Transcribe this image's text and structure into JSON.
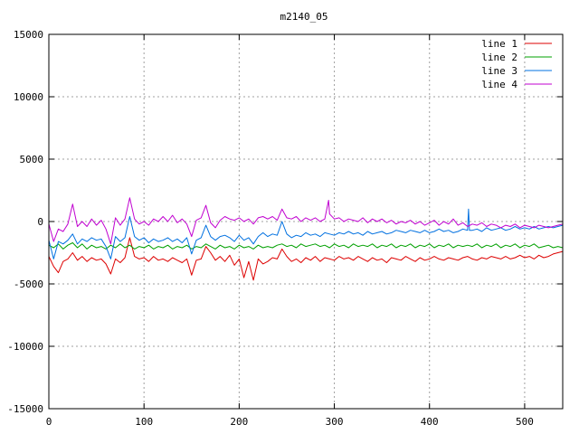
{
  "chart_data": {
    "type": "line",
    "title": "m2140_05",
    "xlabel": "",
    "ylabel": "",
    "xlim": [
      0,
      540
    ],
    "ylim": [
      -15000,
      15000
    ],
    "xticks": [
      0,
      100,
      200,
      300,
      400,
      500
    ],
    "yticks": [
      -15000,
      -10000,
      -5000,
      0,
      5000,
      10000,
      15000
    ],
    "grid": true,
    "legend_position": "top-right",
    "series": [
      {
        "name": "line 1",
        "color": "#dd0000",
        "x": [
          0,
          5,
          10,
          15,
          20,
          25,
          30,
          35,
          40,
          45,
          50,
          55,
          60,
          65,
          70,
          75,
          80,
          85,
          90,
          95,
          100,
          105,
          110,
          115,
          120,
          125,
          130,
          135,
          140,
          145,
          150,
          155,
          160,
          165,
          170,
          175,
          180,
          185,
          190,
          195,
          200,
          205,
          210,
          215,
          220,
          225,
          230,
          235,
          240,
          245,
          250,
          255,
          260,
          265,
          270,
          275,
          280,
          285,
          290,
          295,
          300,
          305,
          310,
          315,
          320,
          325,
          330,
          335,
          340,
          345,
          350,
          355,
          360,
          365,
          370,
          375,
          380,
          385,
          390,
          395,
          400,
          405,
          410,
          415,
          420,
          425,
          430,
          435,
          440,
          445,
          450,
          455,
          460,
          465,
          470,
          475,
          480,
          485,
          490,
          495,
          500,
          505,
          510,
          515,
          520,
          525,
          530,
          535,
          540
        ],
        "y": [
          -2800,
          -3600,
          -4100,
          -3200,
          -3000,
          -2500,
          -3100,
          -2800,
          -3200,
          -2900,
          -3100,
          -3000,
          -3400,
          -4200,
          -3000,
          -3300,
          -2900,
          -1300,
          -2800,
          -3000,
          -2900,
          -3200,
          -2800,
          -3100,
          -3000,
          -3200,
          -2900,
          -3100,
          -3300,
          -3000,
          -4300,
          -3100,
          -3000,
          -2000,
          -2500,
          -3100,
          -2800,
          -3200,
          -2700,
          -3500,
          -3000,
          -4500,
          -3200,
          -4700,
          -3000,
          -3400,
          -3200,
          -2900,
          -3000,
          -2200,
          -2800,
          -3200,
          -3000,
          -3300,
          -2900,
          -3100,
          -2800,
          -3200,
          -2900,
          -3000,
          -3100,
          -2800,
          -3000,
          -2900,
          -3100,
          -2800,
          -3000,
          -3200,
          -2900,
          -3100,
          -3000,
          -3300,
          -2900,
          -3000,
          -3100,
          -2800,
          -3000,
          -3200,
          -2900,
          -3100,
          -3000,
          -2800,
          -3000,
          -3100,
          -2900,
          -3000,
          -3100,
          -2900,
          -2800,
          -3000,
          -3100,
          -2900,
          -3000,
          -2800,
          -2900,
          -3000,
          -2800,
          -3000,
          -2900,
          -2700,
          -2900,
          -2800,
          -3000,
          -2700,
          -2900,
          -2800,
          -2600,
          -2500,
          -2400
        ]
      },
      {
        "name": "line 2",
        "color": "#00a000",
        "x": [
          0,
          5,
          10,
          15,
          20,
          25,
          30,
          35,
          40,
          45,
          50,
          55,
          60,
          65,
          70,
          75,
          80,
          85,
          90,
          95,
          100,
          105,
          110,
          115,
          120,
          125,
          130,
          135,
          140,
          145,
          150,
          155,
          160,
          165,
          170,
          175,
          180,
          185,
          190,
          195,
          200,
          205,
          210,
          215,
          220,
          225,
          230,
          235,
          240,
          245,
          250,
          255,
          260,
          265,
          270,
          275,
          280,
          285,
          290,
          295,
          300,
          305,
          310,
          315,
          320,
          325,
          330,
          335,
          340,
          345,
          350,
          355,
          360,
          365,
          370,
          375,
          380,
          385,
          390,
          395,
          400,
          405,
          410,
          415,
          420,
          425,
          430,
          435,
          440,
          445,
          450,
          455,
          460,
          465,
          470,
          475,
          480,
          485,
          490,
          495,
          500,
          505,
          510,
          515,
          520,
          525,
          530,
          535,
          540
        ],
        "y": [
          -1900,
          -2100,
          -1800,
          -2200,
          -1900,
          -1700,
          -2100,
          -1800,
          -2200,
          -1900,
          -2100,
          -2000,
          -2200,
          -1900,
          -2100,
          -1800,
          -2100,
          -1900,
          -2200,
          -2000,
          -2100,
          -1900,
          -2200,
          -2000,
          -2100,
          -1900,
          -2200,
          -2000,
          -2100,
          -1900,
          -2200,
          -2000,
          -2100,
          -1800,
          -2000,
          -2200,
          -1900,
          -2100,
          -2000,
          -2200,
          -1900,
          -2100,
          -2000,
          -2200,
          -1900,
          -2100,
          -2000,
          -2100,
          -1900,
          -1800,
          -2000,
          -1900,
          -2100,
          -1800,
          -2000,
          -1900,
          -1800,
          -2000,
          -1900,
          -2100,
          -1800,
          -2000,
          -1900,
          -2100,
          -1800,
          -2000,
          -1900,
          -2000,
          -1800,
          -2100,
          -1900,
          -2000,
          -1800,
          -2100,
          -1900,
          -2000,
          -1800,
          -2100,
          -1900,
          -2000,
          -1800,
          -2100,
          -1900,
          -2000,
          -1800,
          -2100,
          -1900,
          -2000,
          -1900,
          -2000,
          -1800,
          -2100,
          -1900,
          -2000,
          -1800,
          -2100,
          -1900,
          -2000,
          -1800,
          -2100,
          -1900,
          -2000,
          -1800,
          -2100,
          -2000,
          -1900,
          -2100,
          -2000,
          -2100
        ]
      },
      {
        "name": "line 3",
        "color": "#0070e0",
        "x": [
          0,
          5,
          10,
          15,
          20,
          25,
          30,
          35,
          40,
          45,
          50,
          55,
          60,
          65,
          70,
          75,
          80,
          85,
          90,
          95,
          100,
          105,
          110,
          115,
          120,
          125,
          130,
          135,
          140,
          145,
          150,
          155,
          160,
          165,
          170,
          175,
          180,
          185,
          190,
          195,
          200,
          205,
          210,
          215,
          220,
          225,
          230,
          235,
          240,
          245,
          250,
          255,
          260,
          265,
          270,
          275,
          280,
          285,
          290,
          295,
          300,
          305,
          310,
          315,
          320,
          325,
          330,
          335,
          340,
          345,
          350,
          355,
          360,
          365,
          370,
          375,
          380,
          385,
          390,
          395,
          400,
          405,
          410,
          415,
          420,
          425,
          430,
          435,
          440,
          441,
          442,
          445,
          450,
          455,
          460,
          465,
          470,
          475,
          480,
          485,
          490,
          495,
          500,
          505,
          510,
          515,
          520,
          525,
          530,
          535,
          540
        ],
        "y": [
          -1500,
          -3000,
          -1600,
          -1800,
          -1500,
          -1000,
          -1800,
          -1400,
          -1600,
          -1300,
          -1500,
          -1400,
          -2000,
          -3000,
          -1200,
          -1600,
          -1300,
          400,
          -1200,
          -1500,
          -1300,
          -1700,
          -1400,
          -1600,
          -1500,
          -1300,
          -1600,
          -1400,
          -1700,
          -1300,
          -2600,
          -1500,
          -1300,
          -300,
          -1200,
          -1500,
          -1200,
          -1100,
          -1300,
          -1600,
          -1100,
          -1500,
          -1300,
          -1800,
          -1200,
          -900,
          -1200,
          -1000,
          -1100,
          0,
          -1000,
          -1300,
          -1100,
          -1200,
          -900,
          -1100,
          -1000,
          -1200,
          -900,
          -1000,
          -1100,
          -900,
          -1000,
          -800,
          -1000,
          -900,
          -1100,
          -800,
          -1000,
          -900,
          -800,
          -1000,
          -900,
          -700,
          -800,
          -900,
          -700,
          -800,
          -900,
          -700,
          -900,
          -800,
          -600,
          -800,
          -700,
          -900,
          -800,
          -600,
          -700,
          1000,
          -700,
          -700,
          -600,
          -800,
          -500,
          -700,
          -600,
          -500,
          -700,
          -600,
          -400,
          -600,
          -500,
          -600,
          -400,
          -600,
          -500,
          -400,
          -500,
          -400,
          -300
        ]
      },
      {
        "name": "line 4",
        "color": "#c000d0",
        "x": [
          0,
          5,
          10,
          15,
          20,
          25,
          30,
          35,
          40,
          45,
          50,
          55,
          60,
          65,
          70,
          75,
          80,
          85,
          90,
          95,
          100,
          105,
          110,
          115,
          120,
          125,
          130,
          135,
          140,
          145,
          150,
          155,
          160,
          165,
          170,
          175,
          180,
          185,
          190,
          195,
          200,
          205,
          210,
          215,
          220,
          225,
          230,
          235,
          240,
          245,
          250,
          255,
          260,
          265,
          270,
          275,
          280,
          285,
          290,
          294,
          295,
          300,
          305,
          310,
          315,
          320,
          325,
          330,
          335,
          340,
          345,
          350,
          355,
          360,
          365,
          370,
          375,
          380,
          385,
          390,
          395,
          400,
          405,
          410,
          415,
          420,
          425,
          430,
          435,
          440,
          445,
          450,
          455,
          460,
          465,
          470,
          475,
          480,
          485,
          490,
          495,
          500,
          505,
          510,
          515,
          520,
          525,
          530,
          535,
          540
        ],
        "y": [
          -200,
          -1600,
          -600,
          -800,
          -200,
          1400,
          -400,
          0,
          -400,
          200,
          -300,
          100,
          -600,
          -1800,
          300,
          -300,
          200,
          1900,
          200,
          -200,
          0,
          -300,
          200,
          0,
          400,
          0,
          500,
          -100,
          200,
          -200,
          -1200,
          100,
          300,
          1300,
          -100,
          -500,
          100,
          400,
          200,
          100,
          300,
          0,
          200,
          -200,
          300,
          400,
          200,
          400,
          100,
          1000,
          300,
          200,
          400,
          0,
          300,
          100,
          300,
          0,
          200,
          1700,
          600,
          200,
          300,
          0,
          200,
          100,
          0,
          300,
          -100,
          200,
          0,
          200,
          -100,
          100,
          -200,
          0,
          -100,
          100,
          -200,
          0,
          -300,
          -100,
          100,
          -300,
          0,
          -200,
          200,
          -300,
          -100,
          -400,
          -200,
          -300,
          -100,
          -400,
          -200,
          -300,
          -500,
          -300,
          -400,
          -200,
          -500,
          -300,
          -400,
          -500,
          -300,
          -400,
          -500,
          -400,
          -300,
          -200
        ]
      }
    ]
  }
}
